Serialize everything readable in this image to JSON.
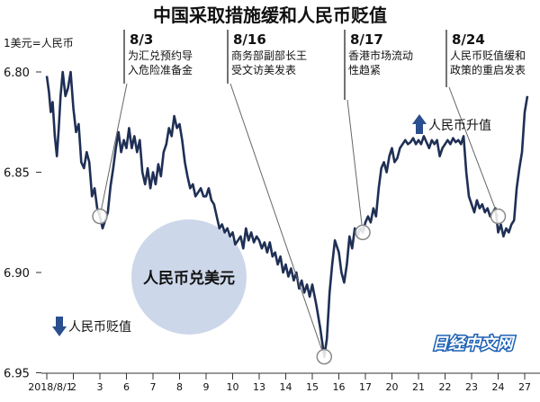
{
  "chart_data": {
    "type": "line",
    "title": "中国采取措施缓和人民币贬值",
    "ylabel": "1美元=人民币",
    "y_inverted": true,
    "ylim": [
      6.95,
      6.795
    ],
    "yticks": [
      "6.80",
      "6.85",
      "6.90",
      "6.95"
    ],
    "ytick_values": [
      6.8,
      6.85,
      6.9,
      6.95
    ],
    "xticks": [
      "2018/8/1",
      "2",
      "3",
      "6",
      "7",
      "8",
      "9",
      "10",
      "13",
      "14",
      "15",
      "16",
      "17",
      "20",
      "21",
      "22",
      "23",
      "24",
      "27"
    ],
    "series": [
      {
        "points": [
          [
            0.0,
            6.802
          ],
          [
            0.08,
            6.81
          ],
          [
            0.15,
            6.82
          ],
          [
            0.22,
            6.815
          ],
          [
            0.3,
            6.832
          ],
          [
            0.38,
            6.842
          ],
          [
            0.45,
            6.828
          ],
          [
            0.52,
            6.812
          ],
          [
            0.6,
            6.8
          ],
          [
            0.7,
            6.812
          ],
          [
            0.8,
            6.808
          ],
          [
            0.9,
            6.8
          ],
          [
            1.0,
            6.818
          ],
          [
            1.1,
            6.83
          ],
          [
            1.2,
            6.826
          ],
          [
            1.3,
            6.845
          ],
          [
            1.4,
            6.848
          ],
          [
            1.5,
            6.84
          ],
          [
            1.6,
            6.845
          ],
          [
            1.7,
            6.862
          ],
          [
            1.8,
            6.858
          ],
          [
            1.9,
            6.868
          ],
          [
            2.0,
            6.872
          ],
          [
            2.1,
            6.878
          ],
          [
            2.2,
            6.874
          ],
          [
            2.3,
            6.87
          ],
          [
            2.4,
            6.857
          ],
          [
            2.5,
            6.848
          ],
          [
            2.6,
            6.838
          ],
          [
            2.7,
            6.83
          ],
          [
            2.8,
            6.84
          ],
          [
            2.9,
            6.834
          ],
          [
            3.0,
            6.838
          ],
          [
            3.1,
            6.828
          ],
          [
            3.2,
            6.838
          ],
          [
            3.3,
            6.832
          ],
          [
            3.4,
            6.84
          ],
          [
            3.5,
            6.834
          ],
          [
            3.6,
            6.85
          ],
          [
            3.7,
            6.856
          ],
          [
            3.8,
            6.848
          ],
          [
            3.9,
            6.858
          ],
          [
            4.0,
            6.85
          ],
          [
            4.1,
            6.856
          ],
          [
            4.2,
            6.846
          ],
          [
            4.3,
            6.852
          ],
          [
            4.4,
            6.84
          ],
          [
            4.5,
            6.836
          ],
          [
            4.6,
            6.828
          ],
          [
            4.7,
            6.832
          ],
          [
            4.8,
            6.822
          ],
          [
            4.9,
            6.828
          ],
          [
            5.0,
            6.826
          ],
          [
            5.1,
            6.834
          ],
          [
            5.2,
            6.845
          ],
          [
            5.3,
            6.852
          ],
          [
            5.4,
            6.858
          ],
          [
            5.5,
            6.856
          ],
          [
            5.6,
            6.862
          ],
          [
            5.7,
            6.86
          ],
          [
            5.8,
            6.858
          ],
          [
            5.9,
            6.862
          ],
          [
            6.0,
            6.862
          ],
          [
            6.1,
            6.858
          ],
          [
            6.2,
            6.864
          ],
          [
            6.3,
            6.866
          ],
          [
            6.4,
            6.872
          ],
          [
            6.5,
            6.878
          ],
          [
            6.6,
            6.876
          ],
          [
            6.7,
            6.88
          ],
          [
            6.8,
            6.878
          ],
          [
            6.9,
            6.882
          ],
          [
            7.0,
            6.88
          ],
          [
            7.1,
            6.886
          ],
          [
            7.2,
            6.884
          ],
          [
            7.3,
            6.882
          ],
          [
            7.4,
            6.888
          ],
          [
            7.5,
            6.878
          ],
          [
            7.6,
            6.884
          ],
          [
            7.7,
            6.88
          ],
          [
            7.8,
            6.885
          ],
          [
            7.9,
            6.882
          ],
          [
            8.0,
            6.884
          ],
          [
            8.1,
            6.888
          ],
          [
            8.2,
            6.885
          ],
          [
            8.3,
            6.89
          ],
          [
            8.4,
            6.885
          ],
          [
            8.5,
            6.892
          ],
          [
            8.6,
            6.89
          ],
          [
            8.7,
            6.896
          ],
          [
            8.8,
            6.892
          ],
          [
            8.9,
            6.9
          ],
          [
            9.0,
            6.896
          ],
          [
            9.1,
            6.902
          ],
          [
            9.2,
            6.898
          ],
          [
            9.3,
            6.904
          ],
          [
            9.4,
            6.9
          ],
          [
            9.5,
            6.908
          ],
          [
            9.6,
            6.904
          ],
          [
            9.7,
            6.91
          ],
          [
            9.8,
            6.906
          ],
          [
            9.9,
            6.912
          ],
          [
            10.0,
            6.906
          ],
          [
            10.15,
            6.916
          ],
          [
            10.3,
            6.928
          ],
          [
            10.45,
            6.942
          ],
          [
            10.55,
            6.933
          ],
          [
            10.65,
            6.91
          ],
          [
            10.75,
            6.896
          ],
          [
            10.85,
            6.884
          ],
          [
            11.0,
            6.89
          ],
          [
            11.1,
            6.9
          ],
          [
            11.2,
            6.905
          ],
          [
            11.3,
            6.896
          ],
          [
            11.4,
            6.882
          ],
          [
            11.5,
            6.888
          ],
          [
            11.6,
            6.878
          ],
          [
            11.7,
            6.882
          ],
          [
            11.8,
            6.878
          ],
          [
            11.9,
            6.88
          ],
          [
            12.0,
            6.875
          ],
          [
            12.1,
            6.872
          ],
          [
            12.2,
            6.875
          ],
          [
            12.3,
            6.868
          ],
          [
            12.4,
            6.872
          ],
          [
            12.5,
            6.858
          ],
          [
            12.6,
            6.848
          ],
          [
            12.7,
            6.845
          ],
          [
            12.8,
            6.85
          ],
          [
            12.9,
            6.842
          ],
          [
            13.0,
            6.838
          ],
          [
            13.1,
            6.845
          ],
          [
            13.2,
            6.843
          ],
          [
            13.3,
            6.838
          ],
          [
            13.4,
            6.836
          ],
          [
            13.5,
            6.834
          ],
          [
            13.6,
            6.836
          ],
          [
            13.7,
            6.835
          ],
          [
            13.8,
            6.833
          ],
          [
            13.9,
            6.836
          ],
          [
            14.0,
            6.834
          ],
          [
            14.1,
            6.836
          ],
          [
            14.2,
            6.832
          ],
          [
            14.3,
            6.835
          ],
          [
            14.4,
            6.838
          ],
          [
            14.5,
            6.834
          ],
          [
            14.6,
            6.836
          ],
          [
            14.7,
            6.834
          ],
          [
            14.8,
            6.842
          ],
          [
            14.9,
            6.838
          ],
          [
            15.0,
            6.836
          ],
          [
            15.1,
            6.834
          ],
          [
            15.2,
            6.836
          ],
          [
            15.3,
            6.833
          ],
          [
            15.4,
            6.835
          ],
          [
            15.5,
            6.834
          ],
          [
            15.6,
            6.836
          ],
          [
            15.7,
            6.832
          ],
          [
            15.8,
            6.85
          ],
          [
            15.9,
            6.862
          ],
          [
            16.0,
            6.866
          ],
          [
            16.1,
            6.87
          ],
          [
            16.2,
            6.864
          ],
          [
            16.3,
            6.868
          ],
          [
            16.4,
            6.866
          ],
          [
            16.5,
            6.87
          ],
          [
            16.6,
            6.868
          ],
          [
            16.7,
            6.872
          ],
          [
            16.8,
            6.87
          ],
          [
            16.9,
            6.868
          ],
          [
            17.0,
            6.88
          ],
          [
            17.1,
            6.876
          ],
          [
            17.2,
            6.882
          ],
          [
            17.3,
            6.878
          ],
          [
            17.4,
            6.88
          ],
          [
            17.5,
            6.876
          ],
          [
            17.6,
            6.874
          ],
          [
            17.7,
            6.858
          ],
          [
            17.8,
            6.848
          ],
          [
            17.9,
            6.84
          ],
          [
            18.0,
            6.82
          ],
          [
            18.1,
            6.812
          ]
        ]
      }
    ],
    "annotations": [
      {
        "date": "8/3",
        "text": [
          "为汇兑预约导",
          "入危险准备金"
        ],
        "x": 2.0,
        "y": 6.872
      },
      {
        "date": "8/16",
        "text": [
          "商务部副部长王",
          "受文访美发表"
        ],
        "x": 10.45,
        "y": 6.942
      },
      {
        "date": "8/17",
        "text": [
          "香港市场流动",
          "性趋紧"
        ],
        "x": 11.9,
        "y": 6.88
      },
      {
        "date": "8/24",
        "text": [
          "人民币贬值缓和",
          "政策的重启发表"
        ],
        "x": 17.0,
        "y": 6.872
      }
    ],
    "labels": {
      "up": "人民币升值",
      "down": "人民币贬值",
      "bubble": "人民币兑美元"
    }
  },
  "watermark": "日经中文网",
  "colors": {
    "line": "#1f2f55",
    "bubble": "#cdd7ea",
    "marker_fill": "#ffffff",
    "marker_stroke": "#888888",
    "arrow": "#2a4f8f",
    "watermark": "#1a5fb4"
  }
}
